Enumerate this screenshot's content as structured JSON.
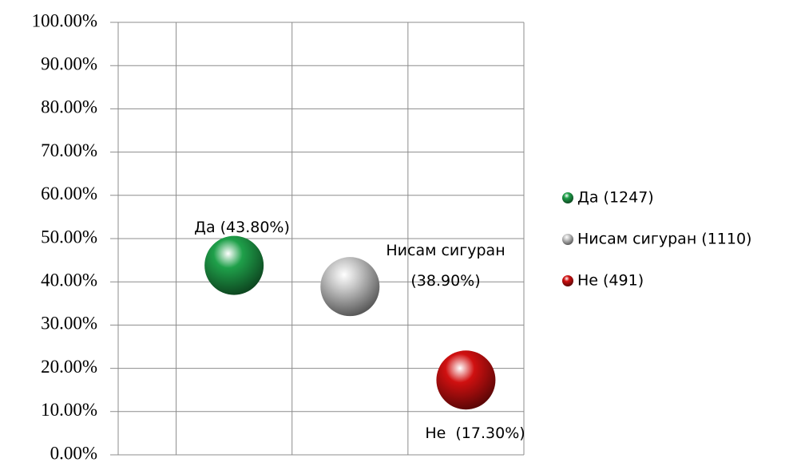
{
  "chart_data": {
    "type": "scatter",
    "series": [
      {
        "name": "Да (1247)",
        "color": "#1fa04a",
        "x": [
          1.5
        ],
        "values": [
          43.8
        ],
        "value_labels": [
          "Да (43.80%)"
        ]
      },
      {
        "name": "Нисам сигуран (1110)",
        "color": "#c8c8c8",
        "x": [
          2.5
        ],
        "values": [
          38.9
        ],
        "value_labels": [
          "Нисам сигуран\n(38.90%)"
        ]
      },
      {
        "name": "Не (491)",
        "color": "#d01010",
        "x": [
          3.5
        ],
        "values": [
          17.3
        ],
        "value_labels": [
          "Не  (17.30%)"
        ]
      }
    ],
    "xlim": [
      0.5,
      4
    ],
    "xticks": [
      1,
      2,
      3,
      4
    ],
    "ylim": [
      0,
      100
    ],
    "yticks": [
      {
        "value": 0,
        "label": "0.00%"
      },
      {
        "value": 10,
        "label": "10.00%"
      },
      {
        "value": 20,
        "label": "20.00%"
      },
      {
        "value": 30,
        "label": "30.00%"
      },
      {
        "value": 40,
        "label": "40.00%"
      },
      {
        "value": 50,
        "label": "50.00%"
      },
      {
        "value": 60,
        "label": "60.00%"
      },
      {
        "value": 70,
        "label": "70.00%"
      },
      {
        "value": 80,
        "label": "80.00%"
      },
      {
        "value": 90,
        "label": "90.00%"
      },
      {
        "value": 100,
        "label": "100.00%"
      }
    ],
    "grid": true,
    "legend": "right"
  }
}
